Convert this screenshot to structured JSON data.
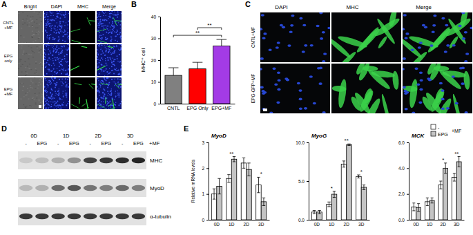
{
  "panel_letters": [
    "A",
    "B",
    "C",
    "D",
    "E"
  ],
  "microscopy_a": {
    "columns": [
      "Bright",
      "DAPI",
      "MHC",
      "Merge"
    ],
    "rows": [
      [
        "CNTL",
        "+MF"
      ],
      [
        "EPG",
        "only"
      ],
      [
        "EPG",
        "+MF"
      ]
    ]
  },
  "microscopy_c": {
    "columns": [
      "DAPI",
      "MHC",
      "Merge"
    ],
    "rows": [
      "CNTL+MF",
      "EPG-GFP+MF"
    ]
  },
  "western_blot": {
    "days": [
      "0D",
      "1D",
      "2D",
      "3D"
    ],
    "lanes": [
      "-",
      "EPG"
    ],
    "condition": "+MF",
    "proteins": [
      "MHC",
      "MyoD",
      "α-tubulin"
    ]
  },
  "chart_data": [
    {
      "type": "bar",
      "categories": [
        "CNTL",
        "EPG Only",
        "EPG+MF"
      ],
      "values": [
        13,
        16,
        26.5
      ],
      "errors": [
        3.5,
        3,
        3
      ],
      "colors": [
        "#808080",
        "#ff0000",
        "#a33be6"
      ],
      "ylabel": "MHC⁺ cell",
      "ylim": [
        0,
        40
      ],
      "yticks": [
        0,
        10,
        20,
        30,
        40
      ],
      "annotations": [
        {
          "text": "**",
          "between": [
            "CNTL",
            "EPG+MF"
          ]
        },
        {
          "text": "**",
          "between": [
            "EPG Only",
            "EPG+MF"
          ]
        }
      ]
    },
    {
      "type": "bar",
      "title": "MyoD",
      "ylabel": "Relative mRNA levels",
      "categories": [
        "0D",
        "1D",
        "2D",
        "3D"
      ],
      "series": [
        {
          "name": "-",
          "color": "#ffffff",
          "values": [
            1.0,
            1.6,
            2.2,
            1.35
          ],
          "errors": [
            0.2,
            0.15,
            0.2,
            0.3
          ]
        },
        {
          "name": "EPG",
          "color": "#c4c4c4",
          "values": [
            1.3,
            2.35,
            1.95,
            0.7
          ],
          "errors": [
            0.3,
            0.1,
            0.25,
            0.15
          ]
        }
      ],
      "ylim": [
        0,
        3
      ],
      "yticks": [
        0,
        1,
        2,
        3
      ],
      "annotations": [
        {
          "text": "**",
          "category": "1D"
        },
        {
          "text": "*",
          "category": "3D"
        }
      ]
    },
    {
      "type": "bar",
      "title": "MyoG",
      "categories": [
        "0D",
        "1D",
        "2D",
        "3D"
      ],
      "series": [
        {
          "name": "-",
          "color": "#ffffff",
          "values": [
            1.0,
            2.0,
            7.2,
            5.6
          ],
          "errors": [
            0.2,
            0.3,
            0.4,
            0.2
          ]
        },
        {
          "name": "EPG",
          "color": "#c4c4c4",
          "values": [
            1.0,
            3.3,
            9.7,
            4.2
          ],
          "errors": [
            0.2,
            0.4,
            0.1,
            0.3
          ]
        }
      ],
      "ylim": [
        0,
        10
      ],
      "yticks": [
        {
          "value": 0,
          "label": "0.0"
        },
        {
          "value": 5,
          "label": "5.0"
        },
        {
          "value": 10,
          "label": "10.0"
        }
      ],
      "annotations": [
        {
          "text": "*",
          "category": "1D"
        },
        {
          "text": "**",
          "category": "2D"
        },
        {
          "text": "*",
          "category": "3D"
        }
      ]
    },
    {
      "type": "bar",
      "title": "MCK",
      "categories": [
        "0D",
        "1D",
        "2D",
        "3D"
      ],
      "series": [
        {
          "name": "-",
          "color": "#ffffff",
          "values": [
            1.0,
            1.4,
            2.7,
            3.3
          ],
          "errors": [
            0.3,
            0.3,
            0.3,
            0.3
          ]
        },
        {
          "name": "EPG",
          "color": "#c4c4c4",
          "values": [
            0.95,
            1.5,
            4.0,
            4.5
          ],
          "errors": [
            0.3,
            0.2,
            0.4,
            0.4
          ]
        }
      ],
      "ylim": [
        0,
        6
      ],
      "yticks": [
        {
          "value": 0,
          "label": "0.0"
        },
        {
          "value": 2,
          "label": "2.0"
        },
        {
          "value": 4,
          "label": "4.0"
        },
        {
          "value": 6,
          "label": "6.0"
        }
      ],
      "annotations": [
        {
          "text": "*",
          "category": "2D"
        },
        {
          "text": "**",
          "category": "3D"
        }
      ],
      "legend": "top-right",
      "legend_title": "+MF"
    }
  ]
}
